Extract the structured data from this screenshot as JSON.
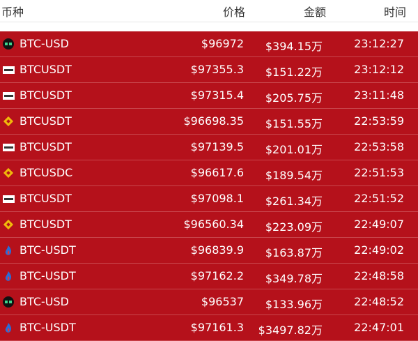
{
  "table": {
    "header": [
      "币种",
      "价格",
      "金额",
      "时间"
    ],
    "rows": [
      [
        "BTC-USD",
        "$96972",
        "$394.15万",
        "23:12:27"
      ],
      [
        "BTCUSDT",
        "$97355.3",
        "$151.22万",
        "23:12:12"
      ],
      [
        "BTCUSDT",
        "$97315.4",
        "$205.75万",
        "23:11:48"
      ],
      [
        "BTCUSDT",
        "$96698.35",
        "$151.55万",
        "22:53:59"
      ],
      [
        "BTCUSDT",
        "$97139.5",
        "$201.01万",
        "22:53:58"
      ],
      [
        "BTCUSDC",
        "$96617.6",
        "$189.54万",
        "22:51:53"
      ],
      [
        "BTCUSDT",
        "$97098.1",
        "$261.34万",
        "22:51:52"
      ],
      [
        "BTCUSDT",
        "$96560.34",
        "$223.09万",
        "22:49:07"
      ],
      [
        "BTC-USDT",
        "$96839.9",
        "$163.87万",
        "22:49:02"
      ],
      [
        "BTC-USDT",
        "$97162.2",
        "$349.78万",
        "22:48:58"
      ],
      [
        "BTC-USD",
        "$96537",
        "$133.96万",
        "22:48:52"
      ],
      [
        "BTC-USDT",
        "$97161.3",
        "$3497.82万",
        "22:47:01"
      ]
    ]
  }
}
